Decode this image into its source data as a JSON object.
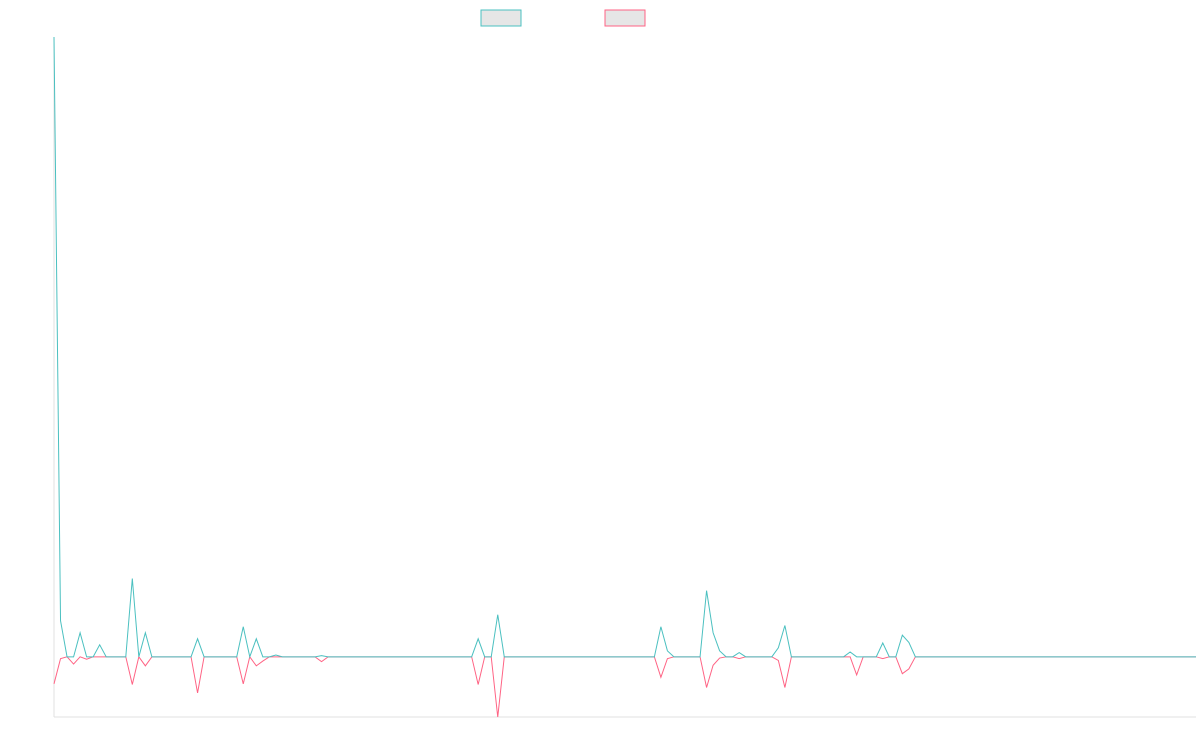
{
  "chart_data": {
    "type": "line",
    "title": "",
    "xlabel": "",
    "ylabel": "",
    "grid": false,
    "legend": "top-center",
    "colors": {
      "series_a": "#4bc0c0",
      "series_b": "#ff6384",
      "swatch_fill": "#e6e6e6",
      "axis": "#e0e0e0"
    },
    "ylim": [
      -10,
      103
    ],
    "y_zero": 0,
    "point_count": 176,
    "series": [
      {
        "key": "series_a",
        "values": [
          103,
          6,
          0,
          0,
          4,
          0,
          0,
          2,
          0,
          0,
          0,
          0,
          13,
          0,
          4,
          0,
          0,
          0,
          0,
          0,
          0,
          0,
          3,
          0,
          0,
          0,
          0,
          0,
          0,
          5,
          0,
          3,
          0,
          0,
          0.3,
          0,
          0,
          0,
          0,
          0,
          0,
          0.2,
          0,
          0,
          0,
          0,
          0,
          0,
          0,
          0,
          0,
          0,
          0,
          0,
          0,
          0,
          0,
          0,
          0,
          0,
          0,
          0,
          0,
          0,
          0,
          3,
          0,
          0,
          7,
          0,
          0,
          0,
          0,
          0,
          0,
          0,
          0,
          0,
          0,
          0,
          0,
          0,
          0,
          0,
          0,
          0,
          0,
          0,
          0,
          0,
          0,
          0,
          0,
          5,
          1,
          0,
          0,
          0,
          0,
          0,
          11,
          4,
          1,
          0,
          0,
          0.7,
          0,
          0,
          0,
          0,
          0,
          1.5,
          5.2,
          0,
          0,
          0,
          0,
          0,
          0,
          0,
          0,
          0,
          0.8,
          0,
          0,
          0,
          0,
          2.3,
          0,
          0,
          3.6,
          2.4,
          0,
          0,
          0,
          0,
          0,
          0,
          0,
          0,
          0,
          0,
          0,
          0,
          0,
          0,
          0,
          0,
          0,
          0,
          0,
          0,
          0,
          0,
          0,
          0,
          0,
          0,
          0,
          0,
          0,
          0,
          0,
          0,
          0,
          0,
          0,
          0,
          0,
          0,
          0,
          0,
          0,
          0,
          0,
          0
        ]
      },
      {
        "key": "series_b",
        "values": [
          -4.5,
          -0.3,
          0,
          -1.2,
          0,
          -0.4,
          0,
          0,
          0,
          0,
          0,
          0,
          -4.6,
          0,
          -1.5,
          0,
          0,
          0,
          0,
          0,
          0,
          0,
          -6,
          0,
          0,
          0,
          0,
          0,
          0,
          -4.5,
          0,
          -1.5,
          -0.7,
          0,
          0,
          0,
          0,
          0,
          0,
          0,
          0,
          -0.8,
          0,
          0,
          0,
          0,
          0,
          0,
          0,
          0,
          0,
          0,
          0,
          0,
          0,
          0,
          0,
          0,
          0,
          0,
          0,
          0,
          0,
          0,
          0,
          -4.6,
          0,
          0,
          -10,
          0,
          0,
          0,
          0,
          0,
          0,
          0,
          0,
          0,
          0,
          0,
          0,
          0,
          0,
          0,
          0,
          0,
          0,
          0,
          0,
          0,
          0,
          0,
          0,
          -3.4,
          -0.3,
          0,
          0,
          0,
          0,
          0,
          -5.1,
          -1.4,
          -0.2,
          0,
          0,
          -0.3,
          0,
          0,
          0,
          0,
          0,
          -0.6,
          -5.1,
          0,
          0,
          0,
          0,
          0,
          0,
          0,
          0,
          0,
          0,
          -3,
          0,
          0,
          0,
          -0.3,
          0,
          0,
          -2.8,
          -2,
          0,
          0,
          0,
          0,
          0,
          0,
          0,
          0,
          0,
          0,
          0,
          0,
          0,
          0,
          0,
          0,
          0,
          0,
          0,
          0,
          0,
          0,
          0,
          0,
          0,
          0,
          0,
          0,
          0,
          0,
          0,
          0,
          0,
          0,
          0,
          0,
          0,
          0,
          0,
          0,
          0,
          0,
          0,
          0
        ]
      }
    ]
  }
}
